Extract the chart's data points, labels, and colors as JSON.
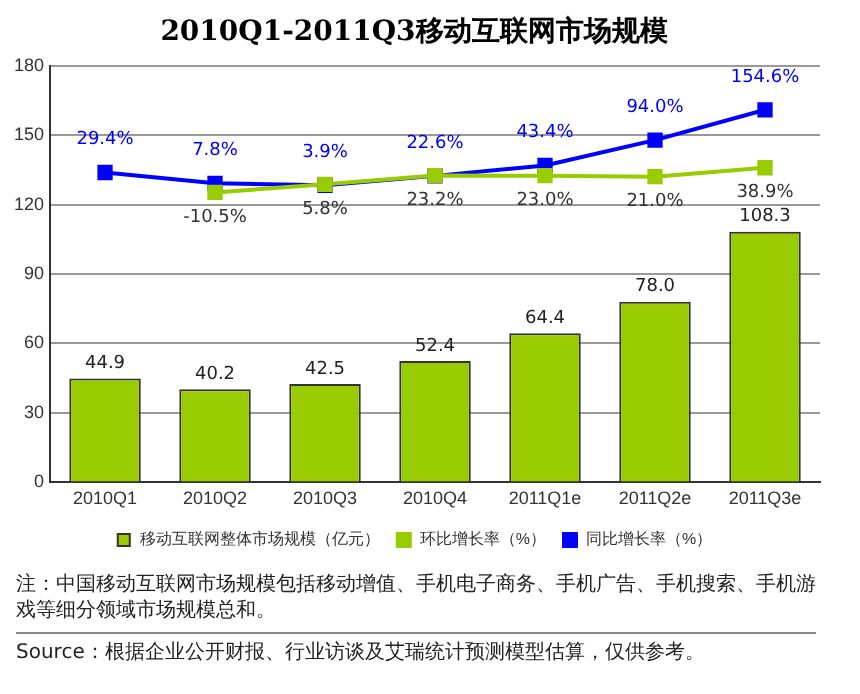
{
  "chart_data": {
    "type": "bar",
    "title": "2010Q1-2011Q3移动互联网市场规模",
    "categories": [
      "2010Q1",
      "2010Q2",
      "2010Q3",
      "2010Q4",
      "2011Q1e",
      "2011Q2e",
      "2011Q3e"
    ],
    "series": [
      {
        "name": "移动互联网整体市场规模（亿元）",
        "color": "#99cc00",
        "values": [
          44.9,
          40.2,
          42.5,
          52.4,
          64.4,
          78.0,
          108.3
        ],
        "value_labels": [
          "44.9",
          "40.2",
          "42.5",
          "52.4",
          "64.4",
          "78.0",
          "108.3"
        ]
      },
      {
        "name": "环比增长率（%）",
        "type": "line",
        "axis": "y2",
        "color": "#99cc00",
        "values": [
          null,
          -10.5,
          5.8,
          23.2,
          23.0,
          21.0,
          38.9
        ],
        "value_labels": [
          null,
          "-10.5%",
          "5.8%",
          "23.2%",
          "23.0%",
          "21.0%",
          "38.9%"
        ]
      },
      {
        "name": "同比增长率（%）",
        "type": "line",
        "axis": "y2",
        "color": "#0000ff",
        "values": [
          29.4,
          7.8,
          3.9,
          22.6,
          43.4,
          94.0,
          154.6
        ],
        "value_labels": [
          "29.4%",
          "7.8%",
          "3.9%",
          "22.6%",
          "43.4%",
          "94.0%",
          "154.6%"
        ]
      }
    ],
    "ylim": [
      0,
      180
    ],
    "yticks": [
      0,
      30,
      60,
      90,
      120,
      150,
      180
    ],
    "y2lim": [
      -590,
      243
    ],
    "tick_labels": "xy",
    "grid": "y",
    "legend": "bottom",
    "marker": "square",
    "line_style": "solid",
    "annotations": [
      "注：中国移动互联网市场规模包括移动增值、手机电子商务、手机广告、手机搜索、手机游戏等细分领域市场规模总和。",
      "Source：根据企业公开财报、行业访谈及艾瑞统计预测模型估算，仅供参考。"
    ]
  }
}
